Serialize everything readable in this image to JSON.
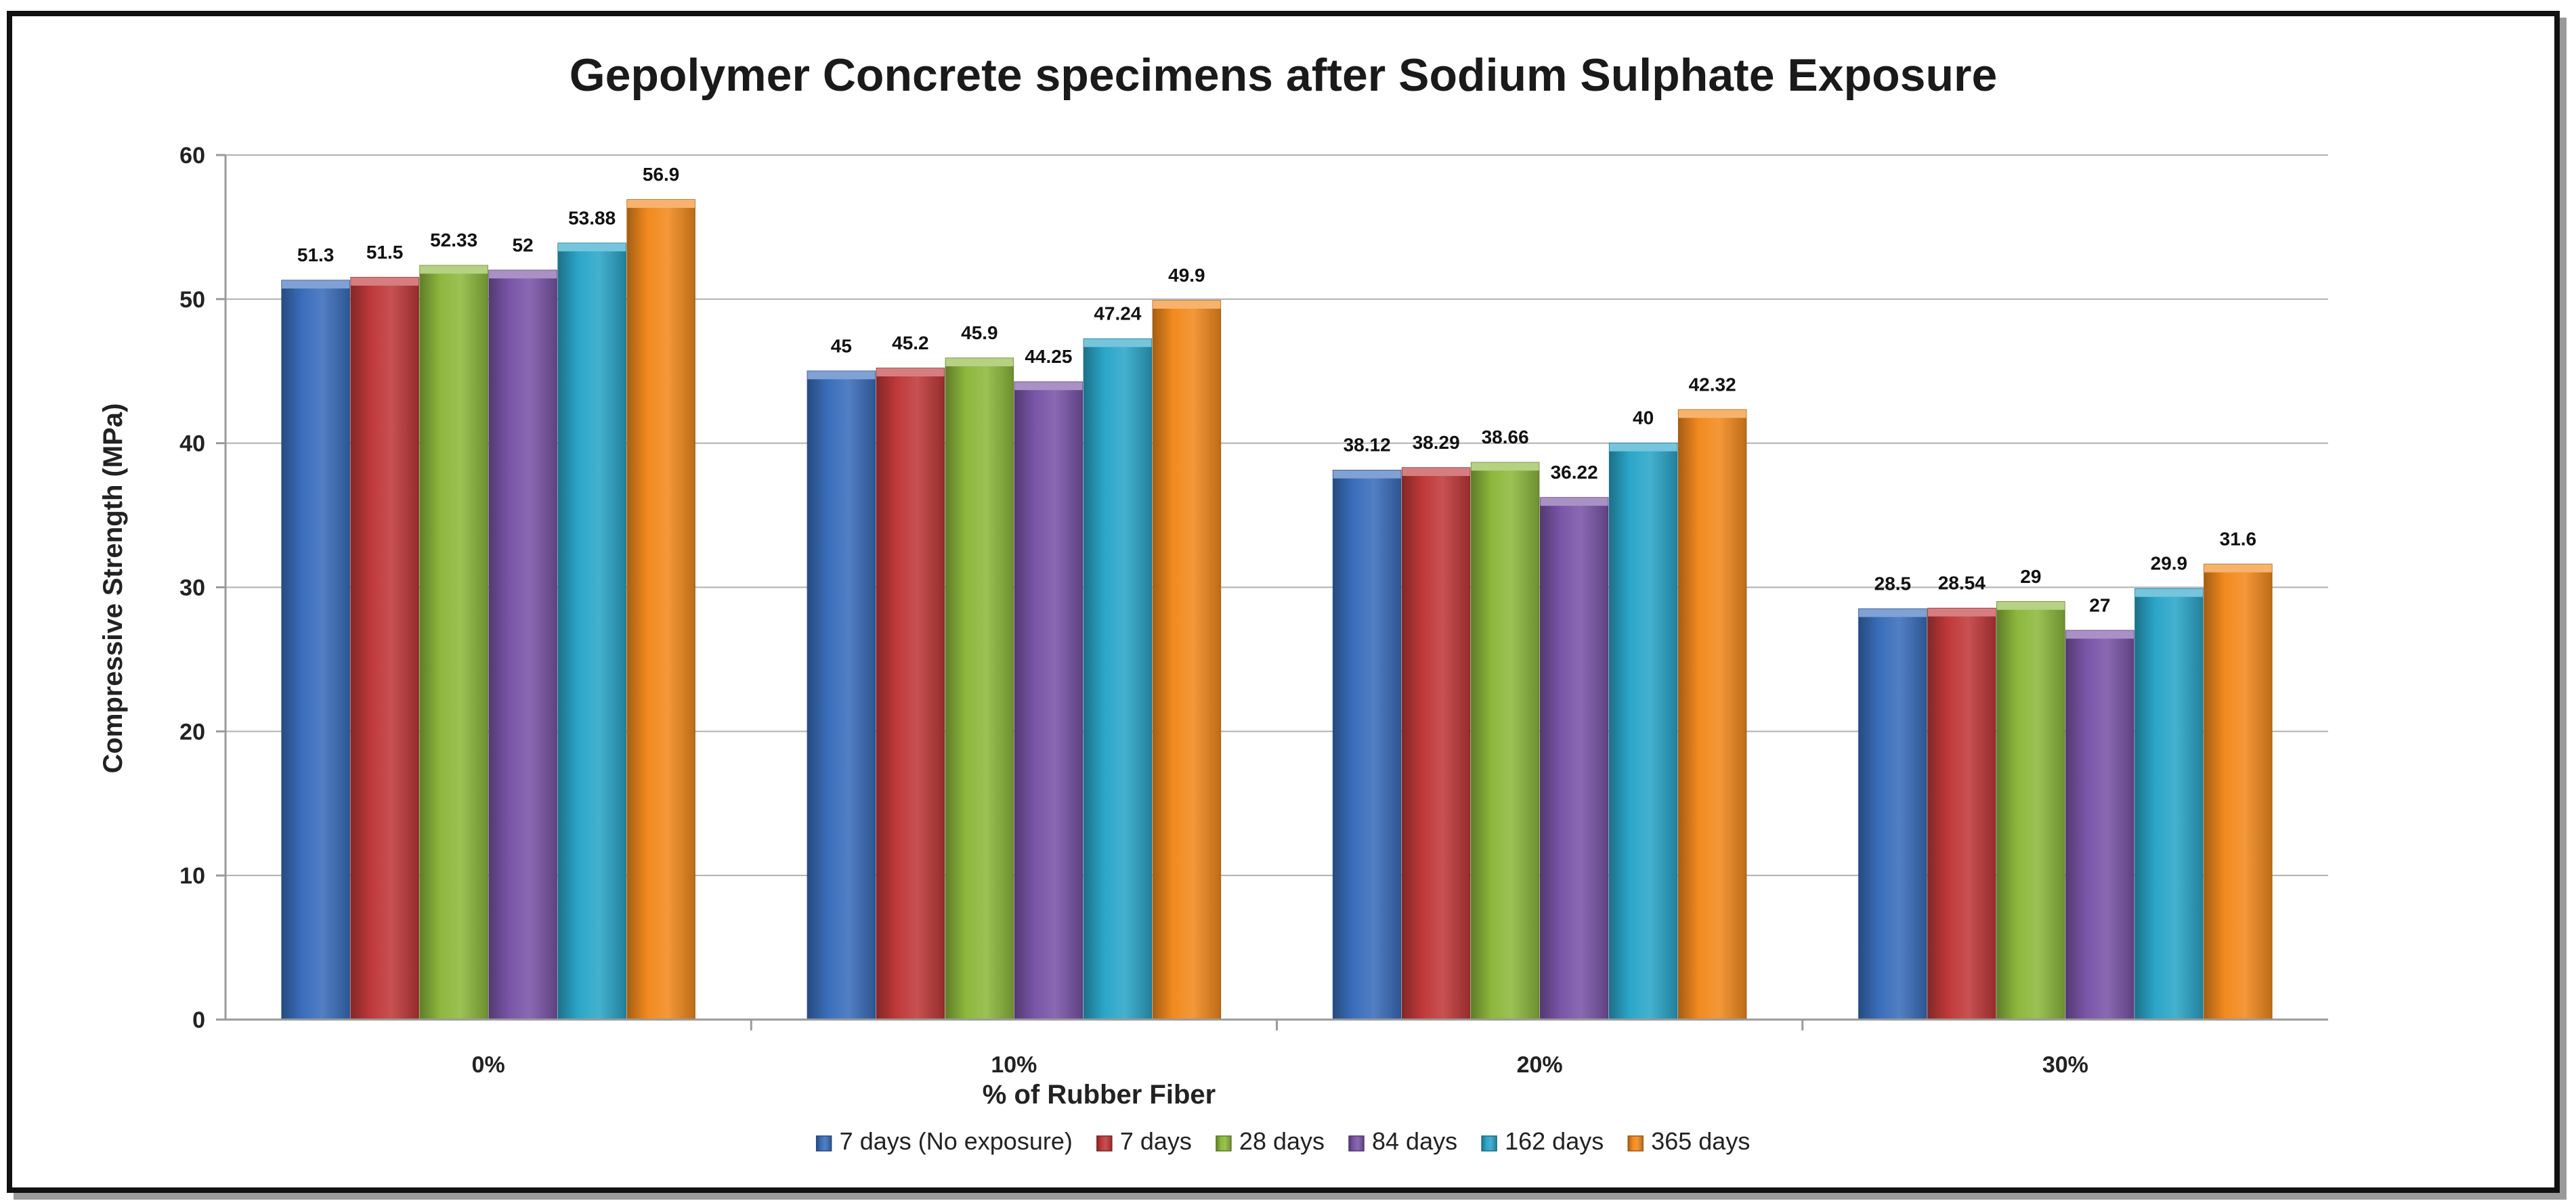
{
  "chart_data": {
    "type": "bar",
    "title": "Gepolymer Concrete specimens after Sodium Sulphate Exposure",
    "xlabel": "% of Rubber Fiber",
    "ylabel": "Compressive Strength  (MPa)",
    "ylim": [
      0,
      60
    ],
    "yticks": [
      "0",
      "10",
      "20",
      "30",
      "40",
      "50",
      "60"
    ],
    "categories": [
      "0%",
      "10%",
      "20%",
      "30%"
    ],
    "grid": true,
    "legend_position": "bottom",
    "series": [
      {
        "name": "7 days (No exposure)",
        "color": "#3a6ebc",
        "values": [
          51.3,
          45,
          38.12,
          28.5
        ],
        "labels": [
          "51.3",
          "45",
          "38.12",
          "28.5"
        ]
      },
      {
        "name": "7 days",
        "color": "#c0393a",
        "values": [
          51.5,
          45.2,
          38.29,
          28.54
        ],
        "labels": [
          "51.5",
          "45.2",
          "38.29",
          "28.54"
        ]
      },
      {
        "name": "28 days",
        "color": "#8db83d",
        "values": [
          52.33,
          45.9,
          38.66,
          29
        ],
        "labels": [
          "52.33",
          "45.9",
          "38.66",
          "29"
        ]
      },
      {
        "name": "84 days",
        "color": "#7a55a8",
        "values": [
          52,
          44.25,
          36.22,
          27
        ],
        "labels": [
          "52",
          "44.25",
          "36.22",
          "27"
        ]
      },
      {
        "name": "162 days",
        "color": "#2ba6c9",
        "values": [
          53.88,
          47.24,
          40,
          29.9
        ],
        "labels": [
          "53.88",
          "47.24",
          "40",
          "29.9"
        ]
      },
      {
        "name": "365 days",
        "color": "#f28a1e",
        "values": [
          56.9,
          49.9,
          42.32,
          31.6
        ],
        "labels": [
          "56.9",
          "49.9",
          "42.32",
          "31.6"
        ]
      }
    ]
  }
}
